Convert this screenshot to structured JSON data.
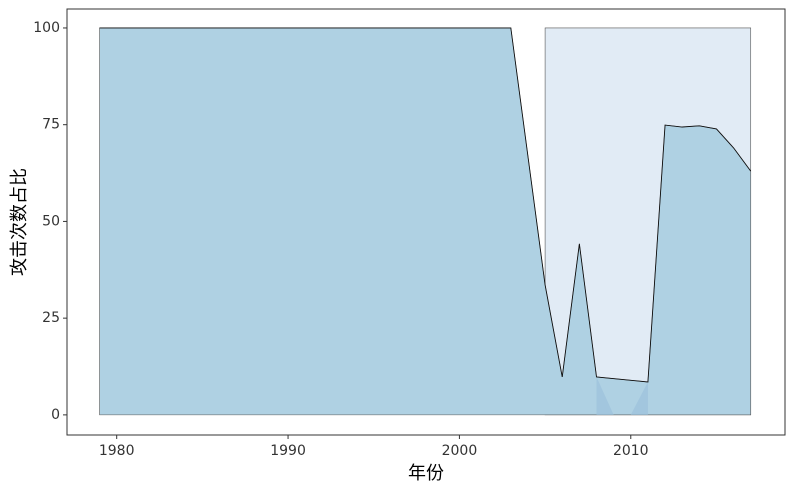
{
  "chart_data": {
    "type": "area",
    "x_label": "年份",
    "y_label": "攻击次数占比",
    "series": [
      {
        "color": "#e1ebf5",
        "x": [
          2005,
          2017
        ],
        "values": [
          100,
          100
        ]
      },
      {
        "color": "#afd1e3",
        "x": [
          1979,
          2003,
          2005,
          2006,
          2007,
          2008,
          2011,
          2012,
          2013,
          2014,
          2015,
          2016,
          2017
        ],
        "values": [
          100,
          100,
          33.6,
          9.8,
          44.2,
          9.8,
          8.5,
          74.9,
          74.4,
          74.7,
          73.9,
          69,
          63
        ]
      },
      {
        "color": "#9fc3dc",
        "x": [
          2008,
          2009,
          2010,
          2011
        ],
        "values": [
          9.8,
          0,
          0,
          8.5
        ]
      }
    ],
    "xlim": [
      1977.1,
      2019
    ],
    "xticks": [
      1980,
      1990,
      2000,
      2010
    ],
    "ylim": [
      -5.2,
      104.9
    ],
    "yticks": [
      0,
      25,
      50,
      75,
      100
    ]
  }
}
